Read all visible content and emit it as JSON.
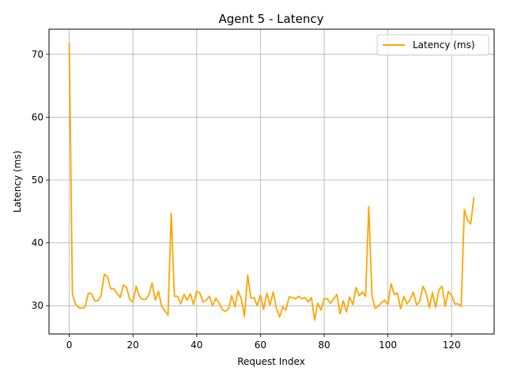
{
  "chart_data": {
    "type": "line",
    "title": "Agent 5 - Latency",
    "xlabel": "Request Index",
    "ylabel": "Latency (ms)",
    "xlim": [
      -6.35,
      133.35
    ],
    "ylim": [
      25.5,
      74.0
    ],
    "xticks": [
      0,
      20,
      40,
      60,
      80,
      100,
      120
    ],
    "yticks": [
      30,
      40,
      50,
      60,
      70
    ],
    "grid": true,
    "legend_position": "top-right",
    "series": [
      {
        "name": "Latency (ms)",
        "color": "#ffa500",
        "x": [
          0,
          1,
          2,
          3,
          4,
          5,
          6,
          7,
          8,
          9,
          10,
          11,
          12,
          13,
          14,
          15,
          16,
          17,
          18,
          19,
          20,
          21,
          22,
          23,
          24,
          25,
          26,
          27,
          28,
          29,
          30,
          31,
          32,
          33,
          34,
          35,
          36,
          37,
          38,
          39,
          40,
          41,
          42,
          43,
          44,
          45,
          46,
          47,
          48,
          49,
          50,
          51,
          52,
          53,
          54,
          55,
          56,
          57,
          58,
          59,
          60,
          61,
          62,
          63,
          64,
          65,
          66,
          67,
          68,
          69,
          70,
          71,
          72,
          73,
          74,
          75,
          76,
          77,
          78,
          79,
          80,
          81,
          82,
          83,
          84,
          85,
          86,
          87,
          88,
          89,
          90,
          91,
          92,
          93,
          94,
          95,
          96,
          97,
          98,
          99,
          100,
          101,
          102,
          103,
          104,
          105,
          106,
          107,
          108,
          109,
          110,
          111,
          112,
          113,
          114,
          115,
          116,
          117,
          118,
          119,
          120,
          121,
          122,
          123,
          124,
          125,
          126,
          127
        ],
        "values": [
          71.8,
          31.8,
          30.2,
          29.7,
          29.6,
          29.8,
          32.0,
          31.9,
          30.8,
          30.8,
          31.6,
          35.0,
          34.6,
          32.7,
          32.7,
          32.0,
          31.3,
          33.3,
          32.9,
          31.0,
          30.6,
          33.1,
          31.5,
          31.0,
          31.0,
          31.7,
          33.6,
          30.9,
          32.3,
          29.9,
          29.2,
          28.5,
          44.7,
          31.5,
          31.5,
          30.3,
          31.8,
          30.9,
          31.9,
          30.2,
          32.3,
          32.0,
          30.6,
          30.9,
          31.5,
          30.0,
          31.2,
          30.5,
          29.4,
          29.1,
          29.5,
          31.6,
          29.8,
          32.4,
          31.0,
          28.3,
          34.9,
          31.2,
          31.3,
          30.0,
          31.7,
          29.4,
          32.0,
          30.1,
          32.2,
          29.6,
          28.2,
          29.8,
          29.3,
          31.4,
          31.3,
          31.1,
          31.5,
          31.1,
          31.3,
          30.6,
          31.3,
          27.7,
          30.4,
          29.3,
          31.1,
          31.1,
          30.4,
          31.1,
          31.8,
          28.7,
          30.8,
          29.0,
          31.4,
          30.2,
          32.9,
          31.6,
          32.2,
          31.5,
          45.8,
          31.6,
          29.6,
          29.9,
          30.5,
          30.9,
          30.2,
          33.5,
          31.8,
          32.0,
          29.5,
          31.5,
          30.3,
          31.0,
          32.2,
          30.1,
          30.7,
          33.1,
          32.0,
          29.7,
          32.1,
          29.7,
          32.5,
          33.1,
          29.9,
          32.3,
          31.6,
          30.3,
          30.3,
          29.9,
          45.3,
          43.6,
          43.0,
          47.3
        ]
      }
    ]
  }
}
